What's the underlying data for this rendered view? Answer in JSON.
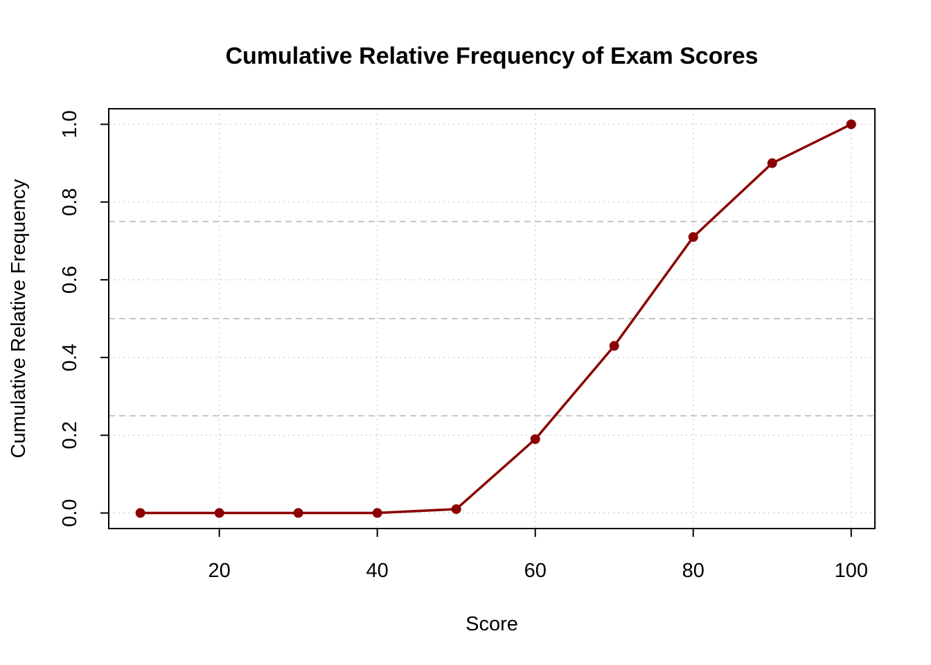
{
  "chart_data": {
    "type": "line",
    "title": "Cumulative Relative Frequency of Exam Scores",
    "xlabel": "Score",
    "ylabel": "Cumulative Relative Frequency",
    "xlim": [
      6,
      103
    ],
    "ylim": [
      -0.04,
      1.04
    ],
    "xticks": [
      20,
      40,
      60,
      80,
      100
    ],
    "xtick_labels": [
      "20",
      "40",
      "60",
      "80",
      "100"
    ],
    "yticks": [
      0.0,
      0.2,
      0.4,
      0.6,
      0.8,
      1.0
    ],
    "ytick_labels": [
      "0.0",
      "0.2",
      "0.4",
      "0.6",
      "0.8",
      "1.0"
    ],
    "grid": true,
    "reference_lines_y": [
      0.25,
      0.5,
      0.75
    ],
    "series": [
      {
        "x": [
          10,
          20,
          30,
          40,
          50,
          60,
          70,
          80,
          90,
          100
        ],
        "values": [
          0.0,
          0.0,
          0.0,
          0.0,
          0.01,
          0.19,
          0.43,
          0.71,
          0.9,
          1.0
        ],
        "color": "#8B0000"
      }
    ],
    "grid_color": "#d3d3d3",
    "reference_line_color": "#bebebe"
  }
}
